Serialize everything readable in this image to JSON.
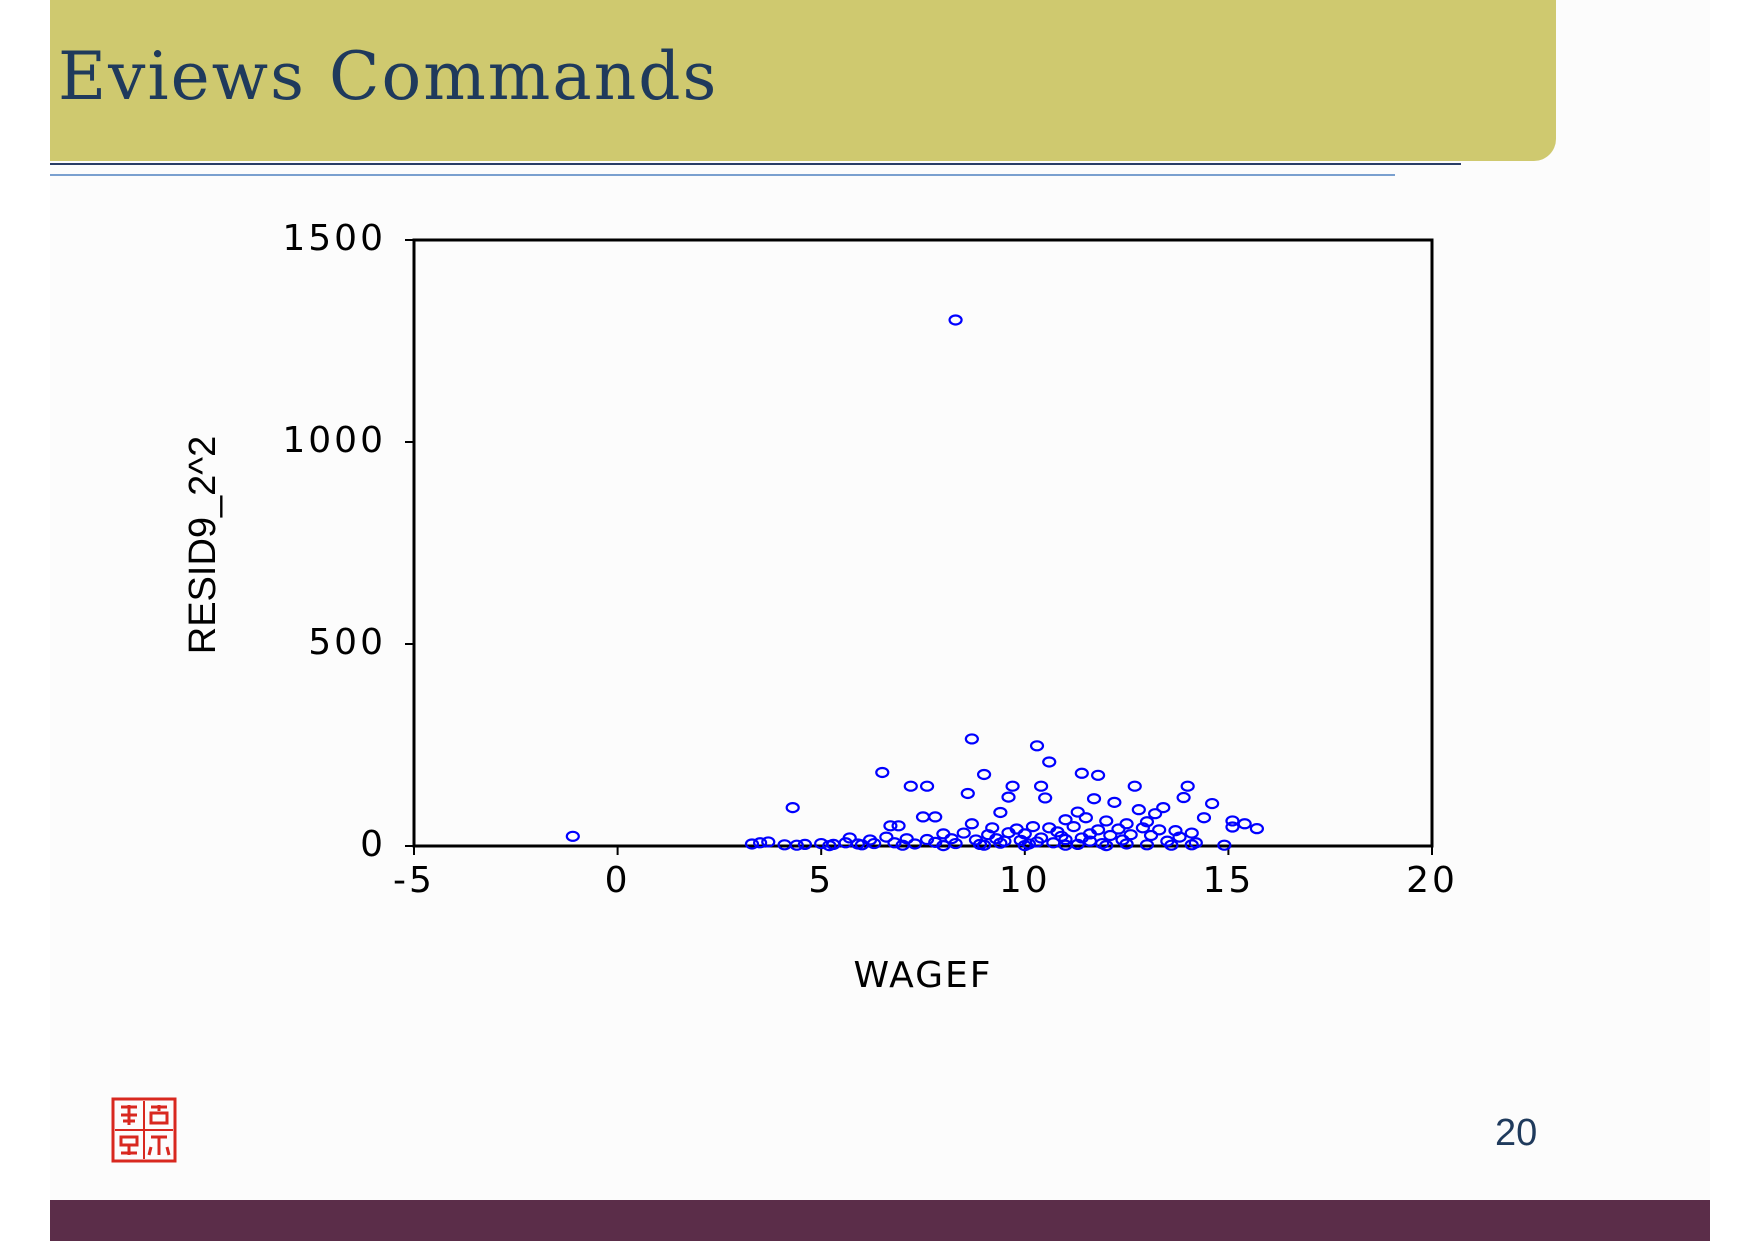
{
  "slide": {
    "title": "Eviews Commands",
    "page_number": "20",
    "colors": {
      "title_bar": "#cfc96f",
      "title_text": "#1f3a5c",
      "footer_bar": "#5b2d49",
      "point": "#0000ff"
    },
    "logo_icon": "red-seal-logo"
  },
  "chart_data": {
    "type": "scatter",
    "xlabel": "WAGEF",
    "ylabel": "RESID9_2^2",
    "xlim": [
      -5,
      20
    ],
    "ylim": [
      0,
      1500
    ],
    "x_ticks": [
      "-5",
      "0",
      "5",
      "10",
      "15",
      "20"
    ],
    "y_ticks": [
      "0",
      "500",
      "1000",
      "1500"
    ],
    "grid": false,
    "point_color": "#0000ff",
    "points": [
      [
        8.3,
        1302
      ],
      [
        -1.1,
        24
      ],
      [
        4.3,
        95
      ],
      [
        8.7,
        265
      ],
      [
        10.3,
        248
      ],
      [
        10.6,
        208
      ],
      [
        6.5,
        182
      ],
      [
        9.0,
        177
      ],
      [
        11.4,
        180
      ],
      [
        11.8,
        175
      ],
      [
        7.2,
        148
      ],
      [
        7.6,
        148
      ],
      [
        9.7,
        148
      ],
      [
        10.4,
        148
      ],
      [
        12.7,
        148
      ],
      [
        14.0,
        148
      ],
      [
        8.6,
        130
      ],
      [
        9.6,
        121
      ],
      [
        10.5,
        119
      ],
      [
        11.7,
        117
      ],
      [
        12.2,
        108
      ],
      [
        13.9,
        120
      ],
      [
        14.6,
        105
      ],
      [
        9.4,
        83
      ],
      [
        11.3,
        84
      ],
      [
        12.8,
        90
      ],
      [
        13.4,
        95
      ],
      [
        13.2,
        80
      ],
      [
        14.4,
        70
      ],
      [
        7.5,
        72
      ],
      [
        7.8,
        72
      ],
      [
        11.0,
        65
      ],
      [
        11.5,
        70
      ],
      [
        12.0,
        62
      ],
      [
        12.5,
        55
      ],
      [
        13.0,
        60
      ],
      [
        15.1,
        62
      ],
      [
        15.4,
        55
      ],
      [
        15.7,
        43
      ],
      [
        6.7,
        50
      ],
      [
        6.9,
        50
      ],
      [
        8.7,
        55
      ],
      [
        9.2,
        45
      ],
      [
        9.8,
        42
      ],
      [
        10.2,
        48
      ],
      [
        10.6,
        45
      ],
      [
        11.2,
        48
      ],
      [
        11.8,
        40
      ],
      [
        12.3,
        42
      ],
      [
        12.9,
        45
      ],
      [
        13.3,
        40
      ],
      [
        13.7,
        38
      ],
      [
        14.1,
        32
      ],
      [
        15.1,
        47
      ],
      [
        8.0,
        30
      ],
      [
        8.5,
        32
      ],
      [
        9.1,
        28
      ],
      [
        9.6,
        33
      ],
      [
        10.0,
        30
      ],
      [
        10.8,
        35
      ],
      [
        11.6,
        30
      ],
      [
        12.1,
        26
      ],
      [
        12.6,
        28
      ],
      [
        13.1,
        26
      ],
      [
        13.8,
        22
      ],
      [
        5.7,
        20
      ],
      [
        6.2,
        15
      ],
      [
        6.6,
        22
      ],
      [
        7.1,
        18
      ],
      [
        7.6,
        16
      ],
      [
        8.2,
        18
      ],
      [
        8.8,
        15
      ],
      [
        9.3,
        18
      ],
      [
        9.9,
        14
      ],
      [
        10.4,
        20
      ],
      [
        11.0,
        16
      ],
      [
        11.4,
        20
      ],
      [
        12.4,
        15
      ],
      [
        13.5,
        12
      ],
      [
        14.2,
        8
      ],
      [
        3.3,
        5
      ],
      [
        3.5,
        8
      ],
      [
        3.7,
        10
      ],
      [
        4.1,
        3
      ],
      [
        4.6,
        4
      ],
      [
        5.0,
        6
      ],
      [
        5.3,
        4
      ],
      [
        5.6,
        8
      ],
      [
        5.9,
        5
      ],
      [
        6.3,
        6
      ],
      [
        6.8,
        8
      ],
      [
        7.3,
        5
      ],
      [
        7.8,
        9
      ],
      [
        8.3,
        6
      ],
      [
        8.9,
        4
      ],
      [
        9.4,
        7
      ],
      [
        10.1,
        5
      ],
      [
        10.7,
        8
      ],
      [
        11.3,
        4
      ],
      [
        11.9,
        6
      ],
      [
        12.5,
        5
      ],
      [
        13.0,
        3
      ],
      [
        13.6,
        2
      ],
      [
        14.1,
        3
      ],
      [
        14.9,
        2
      ],
      [
        4.4,
        2
      ],
      [
        5.2,
        1
      ],
      [
        6.0,
        3
      ],
      [
        7.0,
        2
      ],
      [
        8.0,
        1
      ],
      [
        9.0,
        2
      ],
      [
        10.0,
        1
      ],
      [
        11.0,
        2
      ],
      [
        12.0,
        1
      ],
      [
        9.5,
        12
      ],
      [
        10.3,
        10
      ],
      [
        10.9,
        24
      ],
      [
        11.6,
        12
      ]
    ]
  }
}
